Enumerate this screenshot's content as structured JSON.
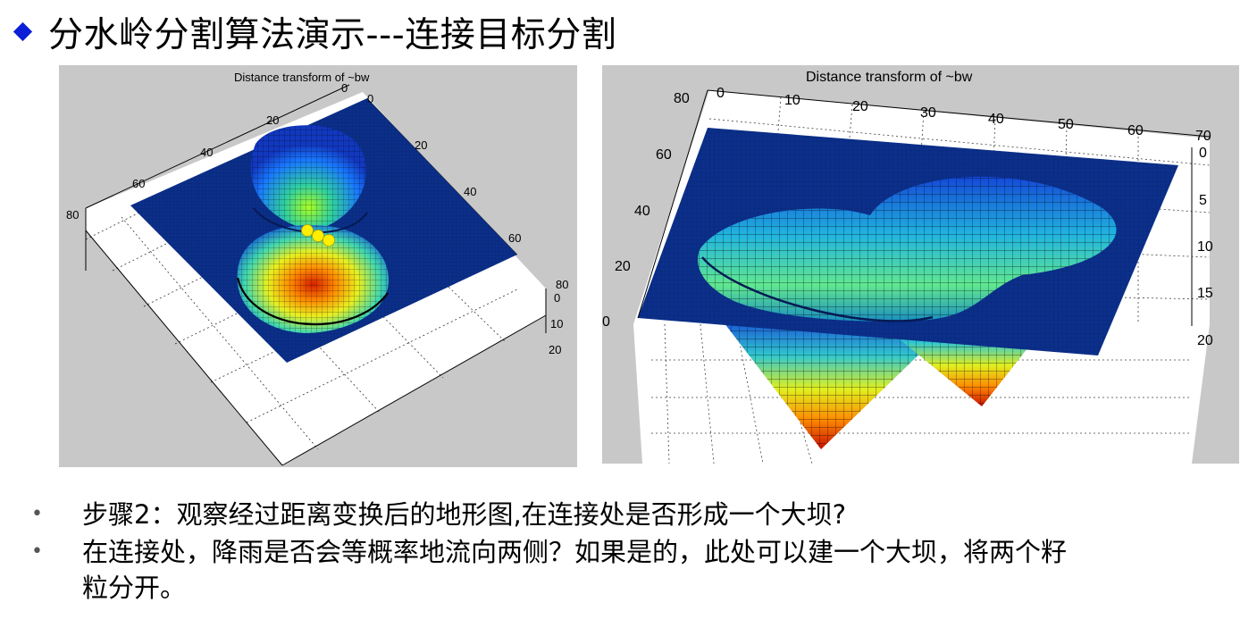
{
  "slide": {
    "title": "分水岭分割算法演示---连接目标分割"
  },
  "figures": {
    "left": {
      "title": "Distance transform of ~bw",
      "axis_x_ticks": [
        "0",
        "20",
        "40",
        "60",
        "80"
      ],
      "axis_y_ticks": [
        "0",
        "20",
        "40",
        "60",
        "80"
      ],
      "axis_z_ticks": [
        "0",
        "10",
        "20"
      ]
    },
    "right": {
      "title": "Distance transform of ~bw",
      "axis_a_ticks": [
        "80",
        "60",
        "40",
        "20",
        "0"
      ],
      "axis_b_ticks": [
        "0",
        "10",
        "20",
        "30",
        "40",
        "50",
        "60",
        "70"
      ],
      "axis_z_ticks": [
        "0",
        "5",
        "10",
        "15",
        "20"
      ]
    }
  },
  "bullets": [
    "步骤2：观察经过距离变换后的地形图,在连接处是否形成一个大坝?",
    "在连接处，降雨是否会等概率地流向两侧？如果是的，此处可以建一个大坝，将两个籽",
    "粒分开。"
  ],
  "colors": {
    "accent": "#0a1fd6",
    "plane": "#0b2f8a",
    "marker": "#ffee00"
  }
}
